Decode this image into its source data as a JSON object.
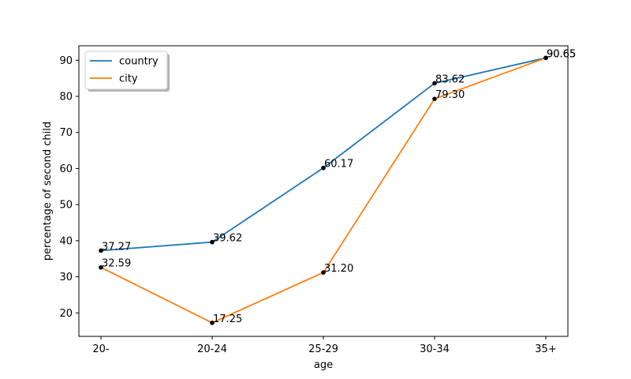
{
  "chart_data": {
    "type": "line",
    "title": "",
    "xlabel": "age",
    "ylabel": "percentage of second child",
    "categories": [
      "20-",
      "20-24",
      "25-29",
      "30-34",
      "35+"
    ],
    "ylim": [
      13.5,
      94
    ],
    "yticks": [
      20,
      30,
      40,
      50,
      60,
      70,
      80,
      90
    ],
    "grid": false,
    "legend_position": "top-left",
    "series": [
      {
        "name": "country",
        "color": "#1f77b4",
        "values": [
          37.27,
          39.62,
          60.17,
          83.62,
          90.65
        ],
        "labels": [
          "37.27",
          "39.62",
          "60.17",
          "83.62",
          "90.65"
        ]
      },
      {
        "name": "city",
        "color": "#ff7f0e",
        "values": [
          32.59,
          17.25,
          31.2,
          79.3,
          90.65
        ],
        "labels": [
          "32.59",
          "17.25",
          "31.20",
          "79.30",
          "90.65"
        ]
      }
    ]
  }
}
